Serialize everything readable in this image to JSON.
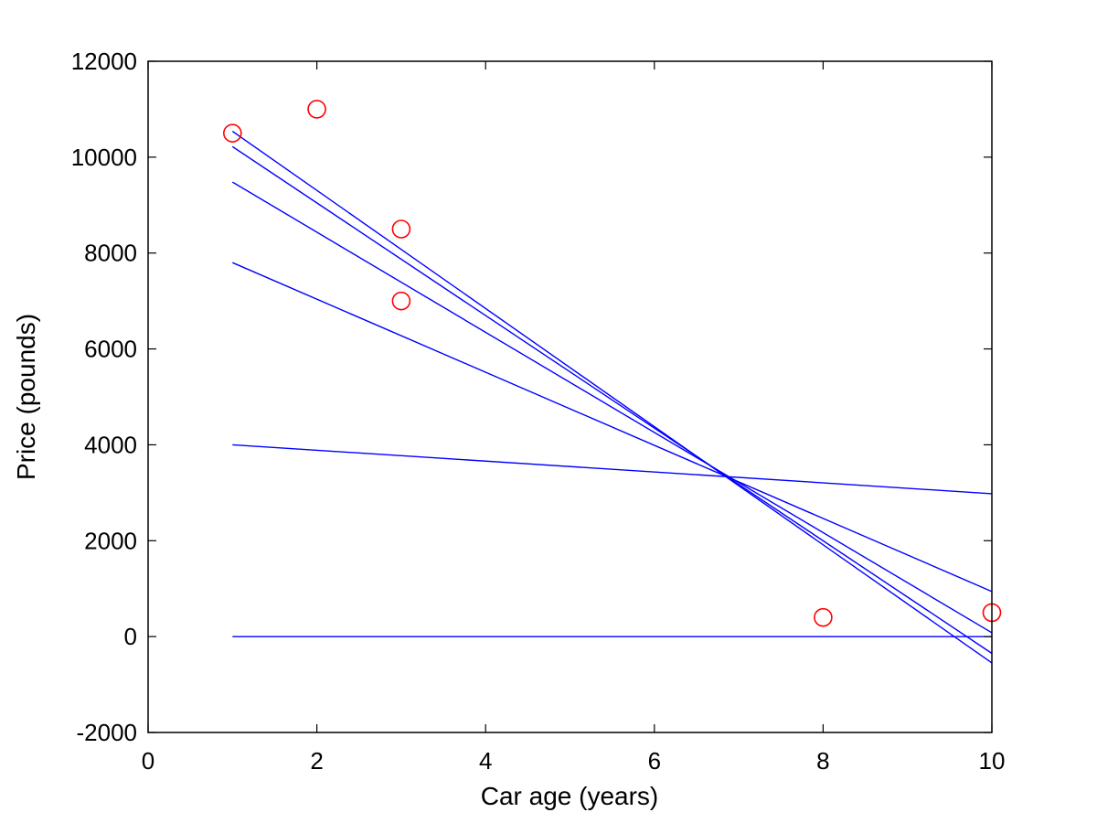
{
  "chart_data": {
    "type": "scatter",
    "title": "",
    "xlabel": "Car age (years)",
    "ylabel": "Price (pounds)",
    "xlim": [
      0,
      10
    ],
    "ylim": [
      -2000,
      12000
    ],
    "xticks": [
      0,
      2,
      4,
      6,
      8,
      10
    ],
    "xtick_labels": [
      "0",
      "2",
      "4",
      "6",
      "8",
      "10"
    ],
    "yticks": [
      -2000,
      0,
      2000,
      4000,
      6000,
      8000,
      10000,
      12000
    ],
    "ytick_labels": [
      "-2000",
      "0",
      "2000",
      "4000",
      "6000",
      "8000",
      "10000",
      "12000"
    ],
    "grid": false,
    "box": true,
    "points": {
      "marker": "circle",
      "color": "#ff0000",
      "x": [
        1,
        2,
        3,
        3,
        8,
        10
      ],
      "y": [
        10500,
        11000,
        8500,
        7000,
        400,
        500
      ]
    },
    "lines": {
      "color": "#0000ff",
      "series": [
        {
          "x": [
            1,
            10
          ],
          "y": [
            0,
            0
          ]
        },
        {
          "x": [
            1,
            10
          ],
          "y": [
            4000,
            2980
          ]
        },
        {
          "x": [
            1,
            10
          ],
          "y": [
            7800,
            940
          ]
        },
        {
          "x": [
            1,
            10
          ],
          "y": [
            9480,
            80
          ]
        },
        {
          "x": [
            1,
            10
          ],
          "y": [
            10220,
            -350
          ]
        },
        {
          "x": [
            1,
            10
          ],
          "y": [
            10540,
            -550
          ]
        }
      ]
    }
  }
}
